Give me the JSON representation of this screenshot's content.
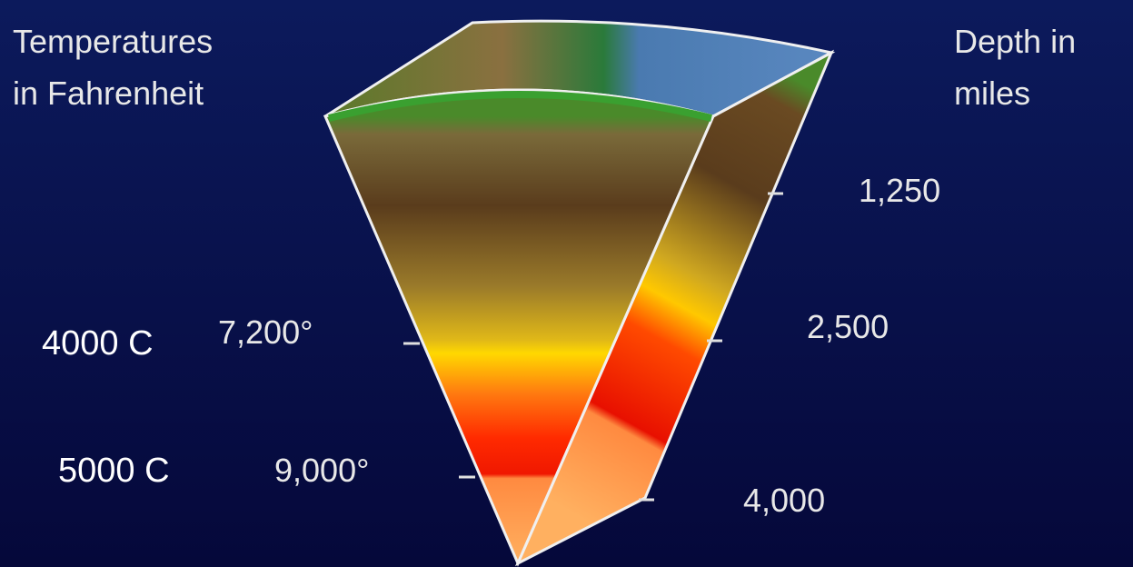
{
  "left_title": [
    "Temperatures",
    "in Fahrenheit"
  ],
  "right_title": [
    "Depth in",
    "miles"
  ],
  "temperatures": [
    {
      "fahrenheit": "7,200°",
      "celsius": "4000 C"
    },
    {
      "fahrenheit": "9,000°",
      "celsius": "5000 C"
    }
  ],
  "depths": [
    "1,250",
    "2,500",
    "4,000"
  ]
}
